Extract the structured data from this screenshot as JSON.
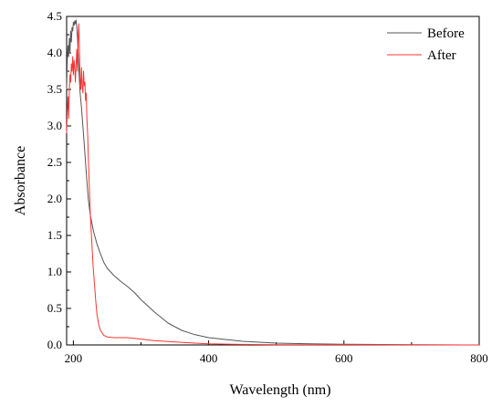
{
  "chart_data": {
    "type": "line",
    "xlabel": "Wavelength  (nm)",
    "ylabel": "Absorbance",
    "xlim": [
      190,
      800
    ],
    "ylim": [
      0,
      4.5
    ],
    "x_ticks": [
      200,
      400,
      600,
      800
    ],
    "x_tick_labels": [
      "200",
      "400",
      "600",
      "800"
    ],
    "y_ticks": [
      0,
      0.5,
      1,
      1.5,
      2,
      2.5,
      3,
      3.5,
      4,
      4.5
    ],
    "y_tick_labels": [
      "0.0",
      "0.5",
      "1.0",
      "1.5",
      "2.0",
      "2.5",
      "3.0",
      "3.5",
      "4.0",
      "4.5"
    ],
    "grid": false,
    "legend_position": "top-right",
    "series": [
      {
        "name": "Before",
        "color": "#555555",
        "points": [
          [
            190,
            3.5
          ],
          [
            191,
            3.9
          ],
          [
            192,
            4.1
          ],
          [
            193,
            3.95
          ],
          [
            194,
            4.2
          ],
          [
            195,
            4.0
          ],
          [
            196,
            4.3
          ],
          [
            197,
            4.15
          ],
          [
            198,
            4.35
          ],
          [
            199,
            4.3
          ],
          [
            200,
            4.42
          ],
          [
            201,
            4.38
          ],
          [
            202,
            4.44
          ],
          [
            203,
            4.4
          ],
          [
            204,
            4.45
          ],
          [
            205,
            4.35
          ],
          [
            206,
            4.2
          ],
          [
            207,
            4.0
          ],
          [
            208,
            3.8
          ],
          [
            209,
            3.6
          ],
          [
            210,
            3.45
          ],
          [
            212,
            3.25
          ],
          [
            214,
            3.0
          ],
          [
            216,
            2.75
          ],
          [
            218,
            2.5
          ],
          [
            220,
            2.25
          ],
          [
            222,
            2.0
          ],
          [
            225,
            1.78
          ],
          [
            230,
            1.55
          ],
          [
            235,
            1.38
          ],
          [
            240,
            1.25
          ],
          [
            245,
            1.13
          ],
          [
            250,
            1.05
          ],
          [
            260,
            0.95
          ],
          [
            270,
            0.87
          ],
          [
            280,
            0.8
          ],
          [
            290,
            0.72
          ],
          [
            300,
            0.62
          ],
          [
            320,
            0.45
          ],
          [
            340,
            0.3
          ],
          [
            360,
            0.2
          ],
          [
            380,
            0.14
          ],
          [
            400,
            0.1
          ],
          [
            450,
            0.05
          ],
          [
            500,
            0.025
          ],
          [
            550,
            0.015
          ],
          [
            600,
            0.01
          ],
          [
            630,
            0.007
          ],
          [
            700,
            0.003
          ],
          [
            800,
            0.0
          ]
        ]
      },
      {
        "name": "After",
        "color": "#ff3333",
        "points": [
          [
            190,
            2.9
          ],
          [
            191,
            3.2
          ],
          [
            192,
            3.4
          ],
          [
            193,
            3.1
          ],
          [
            194,
            3.5
          ],
          [
            195,
            3.7
          ],
          [
            196,
            3.6
          ],
          [
            197,
            3.85
          ],
          [
            198,
            3.75
          ],
          [
            199,
            3.95
          ],
          [
            200,
            3.7
          ],
          [
            201,
            3.9
          ],
          [
            202,
            3.8
          ],
          [
            203,
            3.6
          ],
          [
            204,
            3.85
          ],
          [
            205,
            4.05
          ],
          [
            206,
            3.75
          ],
          [
            207,
            4.2
          ],
          [
            208,
            4.4
          ],
          [
            209,
            4.0
          ],
          [
            210,
            3.65
          ],
          [
            211,
            3.5
          ],
          [
            212,
            3.8
          ],
          [
            213,
            3.55
          ],
          [
            214,
            3.45
          ],
          [
            215,
            3.75
          ],
          [
            216,
            3.55
          ],
          [
            217,
            3.6
          ],
          [
            218,
            3.35
          ],
          [
            219,
            3.45
          ],
          [
            220,
            3.1
          ],
          [
            221,
            2.9
          ],
          [
            222,
            2.6
          ],
          [
            223,
            2.3
          ],
          [
            224,
            2.05
          ],
          [
            225,
            1.8
          ],
          [
            227,
            1.45
          ],
          [
            229,
            1.1
          ],
          [
            231,
            0.85
          ],
          [
            233,
            0.6
          ],
          [
            235,
            0.42
          ],
          [
            237,
            0.3
          ],
          [
            240,
            0.2
          ],
          [
            245,
            0.13
          ],
          [
            250,
            0.11
          ],
          [
            260,
            0.1
          ],
          [
            270,
            0.1
          ],
          [
            280,
            0.1
          ],
          [
            290,
            0.09
          ],
          [
            300,
            0.08
          ],
          [
            320,
            0.06
          ],
          [
            350,
            0.04
          ],
          [
            380,
            0.025
          ],
          [
            400,
            0.015
          ],
          [
            450,
            0.008
          ],
          [
            500,
            0.004
          ],
          [
            600,
            0.002
          ],
          [
            700,
            0.001
          ],
          [
            800,
            0.0
          ]
        ]
      }
    ]
  }
}
